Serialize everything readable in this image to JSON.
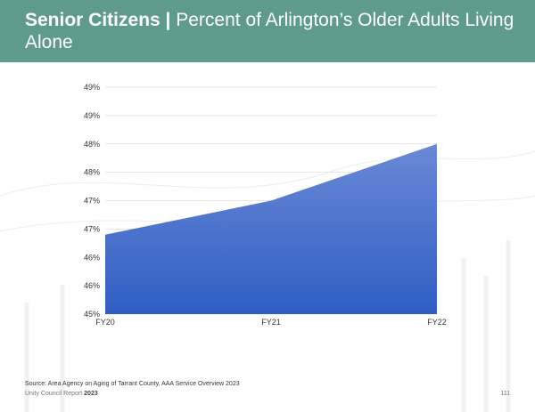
{
  "header": {
    "title_bold": "Senior Citizens |",
    "title_rest": "Percent of Arlington’s Older Adults Living Alone"
  },
  "colors": {
    "header_bg": "#5f9a8f",
    "area_top": "#6a89d6",
    "area_bottom": "#2f5ec4"
  },
  "chart_data": {
    "type": "area",
    "categories": [
      "FY20",
      "FY21",
      "FY22"
    ],
    "series": [
      {
        "values": [
          46.4,
          47.0,
          48.0
        ]
      }
    ],
    "y_tick_labels": [
      "45%",
      "46%",
      "46%",
      "47%",
      "47%",
      "48%",
      "48%",
      "49%",
      "49%"
    ],
    "ylim": [
      45,
      49
    ],
    "grid": true,
    "legend": "none"
  },
  "footer": {
    "source": "Source: Area Agency on Aging of Tarrant County, AAA Service Overview 2023",
    "report": "Unity Council Report",
    "year": "2023",
    "page": "111"
  }
}
